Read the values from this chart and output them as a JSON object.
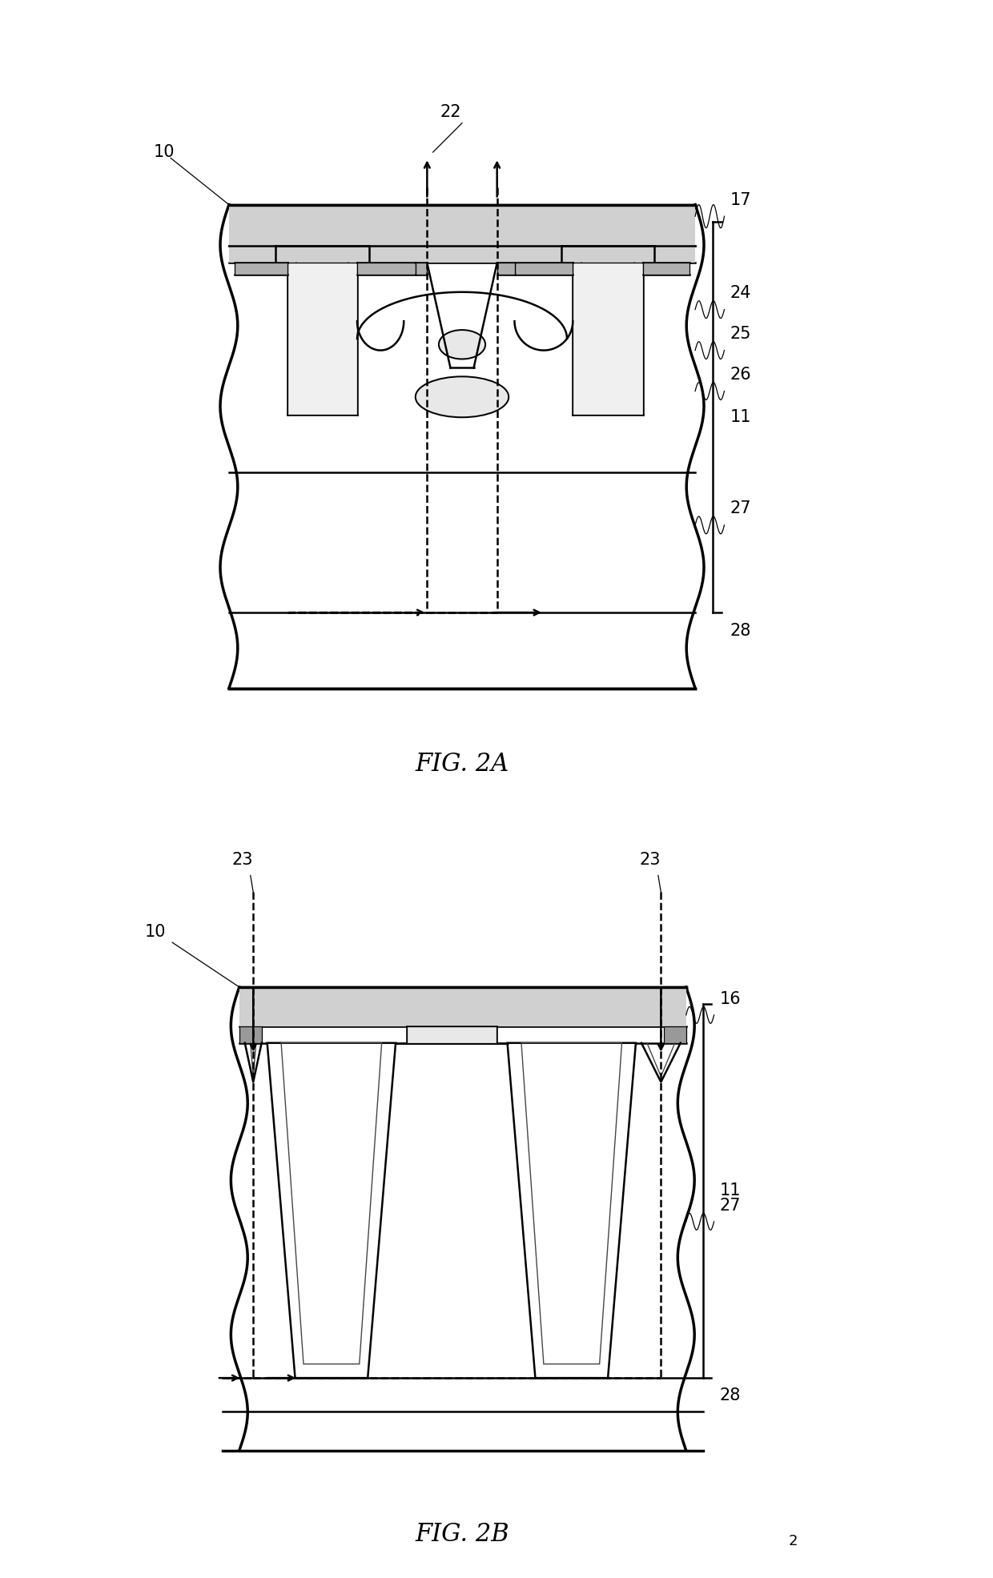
{
  "fig_width": 12.4,
  "fig_height": 19.71,
  "bg_color": "#ffffff",
  "lc": "#000000",
  "lw": 1.8,
  "lw2": 2.5,
  "fs": 15,
  "fs_title": 22,
  "fs_page": 13
}
